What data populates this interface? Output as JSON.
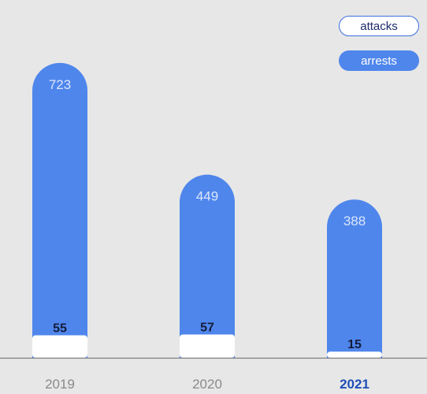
{
  "colors": {
    "background": "#e7e7e7",
    "arrests": "#4f86ec",
    "attacks": "#ffffff",
    "year_label": "#8a8a8a",
    "year_label_active": "#1e4fb8",
    "attack_text": "#141c3a"
  },
  "legend": {
    "attacks": "attacks",
    "arrests": "arrests"
  },
  "chart_data": {
    "type": "bar",
    "categories": [
      "2019",
      "2020",
      "2021"
    ],
    "highlighted_category": "2021",
    "series": [
      {
        "name": "arrests",
        "values": [
          723,
          449,
          388
        ]
      },
      {
        "name": "attacks",
        "values": [
          55,
          57,
          15
        ]
      }
    ],
    "ylim": [
      0,
      800
    ],
    "grid": false,
    "legend_position": "top-right"
  }
}
